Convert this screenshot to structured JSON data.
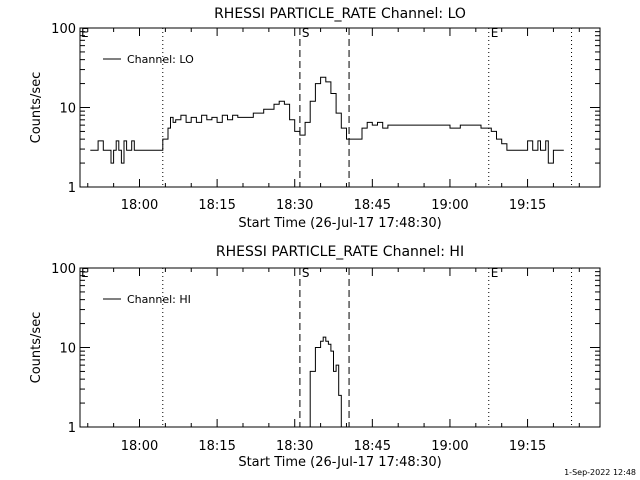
{
  "footer": {
    "timestamp": "1-Sep-2022 12:48"
  },
  "chart_data": [
    {
      "type": "line",
      "title": "RHESSI PARTICLE_RATE Channel: LO",
      "xlabel": "Start Time (26-Jul-17 17:48:30)",
      "ylabel": "Counts/sec",
      "y_scale": "log",
      "ylim": [
        1,
        100
      ],
      "y_ticks": [
        "1",
        "10",
        "100"
      ],
      "xlim": [
        "17:48:30",
        "19:29:00"
      ],
      "x_ticks": [
        "18:00",
        "18:15",
        "18:30",
        "18:45",
        "19:00",
        "19:15"
      ],
      "grid": false,
      "legend": {
        "position": "top-left",
        "entries": [
          "Channel: LO"
        ]
      },
      "markers": [
        {
          "time": "18:04:30",
          "style": "dotted",
          "label": ""
        },
        {
          "time": "18:31:00",
          "style": "dashed",
          "label": "S"
        },
        {
          "time": "18:40:30",
          "style": "dashed",
          "label": ""
        },
        {
          "time": "19:07:30",
          "style": "dotted",
          "label": "E"
        },
        {
          "time": "19:23:30",
          "style": "dotted",
          "label": ""
        }
      ],
      "corner_label": "E",
      "series": [
        {
          "name": "Channel: LO",
          "x": [
            "17:50:30",
            "17:51:30",
            "17:52:00",
            "17:53:00",
            "17:54:00",
            "17:54:30",
            "17:55:00",
            "17:55:30",
            "17:56:00",
            "17:56:30",
            "17:57:00",
            "17:57:30",
            "17:58:00",
            "17:58:30",
            "17:59:00",
            "18:00:00",
            "18:02:00",
            "18:04:00",
            "18:04:30",
            "18:05:30",
            "18:06:00",
            "18:06:30",
            "18:07:00",
            "18:08:00",
            "18:09:00",
            "18:10:00",
            "18:11:00",
            "18:12:00",
            "18:13:00",
            "18:14:00",
            "18:15:00",
            "18:16:00",
            "18:17:00",
            "18:18:00",
            "18:19:00",
            "18:20:00",
            "18:22:00",
            "18:24:00",
            "18:26:00",
            "18:27:00",
            "18:28:00",
            "18:29:00",
            "18:30:00",
            "18:31:00",
            "18:32:00",
            "18:33:00",
            "18:34:00",
            "18:35:00",
            "18:36:00",
            "18:37:00",
            "18:38:00",
            "18:39:00",
            "18:40:00",
            "18:41:00",
            "18:42:00",
            "18:43:00",
            "18:44:00",
            "18:45:00",
            "18:46:00",
            "18:47:00",
            "18:48:00",
            "18:50:00",
            "18:52:00",
            "18:54:00",
            "18:56:00",
            "18:58:00",
            "19:00:00",
            "19:02:00",
            "19:04:00",
            "19:06:00",
            "19:08:00",
            "19:09:00",
            "19:10:00",
            "19:11:00",
            "19:12:00",
            "19:13:00",
            "19:14:00",
            "19:15:00",
            "19:16:00",
            "19:17:00",
            "19:17:30",
            "19:18:00",
            "19:18:30",
            "19:19:00",
            "19:20:00",
            "19:22:00"
          ],
          "values": [
            2.9,
            2.9,
            3.8,
            2.9,
            2.9,
            2.0,
            2.9,
            3.8,
            2.9,
            2.0,
            3.8,
            2.9,
            2.9,
            3.8,
            2.9,
            2.9,
            2.9,
            2.9,
            4.0,
            5.5,
            7.5,
            6.5,
            7.0,
            8.0,
            6.5,
            7.5,
            6.5,
            8.0,
            7.0,
            7.5,
            6.5,
            8.0,
            7.0,
            8.0,
            7.5,
            7.5,
            8.5,
            9.5,
            11.0,
            12.0,
            11.0,
            7.0,
            5.0,
            4.5,
            6.5,
            12.0,
            20.0,
            24.0,
            21.0,
            15.0,
            8.5,
            5.5,
            4.0,
            4.0,
            4.0,
            5.5,
            6.5,
            6.0,
            6.5,
            5.5,
            6.0,
            6.0,
            6.0,
            6.0,
            6.0,
            6.0,
            5.5,
            6.0,
            6.0,
            5.5,
            5.0,
            4.0,
            3.5,
            2.9,
            2.9,
            2.9,
            2.9,
            3.8,
            2.9,
            3.8,
            2.9,
            2.9,
            3.8,
            2.0,
            2.9,
            2.9
          ]
        }
      ]
    },
    {
      "type": "line",
      "title": "RHESSI PARTICLE_RATE Channel: HI",
      "xlabel": "Start Time (26-Jul-17 17:48:30)",
      "ylabel": "Counts/sec",
      "y_scale": "log",
      "ylim": [
        1,
        100
      ],
      "y_ticks": [
        "1",
        "10",
        "100"
      ],
      "xlim": [
        "17:48:30",
        "19:29:00"
      ],
      "x_ticks": [
        "18:00",
        "18:15",
        "18:30",
        "18:45",
        "19:00",
        "19:15"
      ],
      "grid": false,
      "legend": {
        "position": "top-left",
        "entries": [
          "Channel: HI"
        ]
      },
      "markers": [
        {
          "time": "18:04:30",
          "style": "dotted",
          "label": ""
        },
        {
          "time": "18:31:00",
          "style": "dashed",
          "label": "S"
        },
        {
          "time": "18:40:30",
          "style": "dashed",
          "label": ""
        },
        {
          "time": "19:07:30",
          "style": "dotted",
          "label": "E"
        },
        {
          "time": "19:23:30",
          "style": "dotted",
          "label": ""
        }
      ],
      "corner_label": "E",
      "series": [
        {
          "name": "Channel: HI",
          "x": [
            "18:32:00",
            "18:33:00",
            "18:34:00",
            "18:35:00",
            "18:35:30",
            "18:36:00",
            "18:36:30",
            "18:37:00",
            "18:37:30",
            "18:38:00",
            "18:38:30",
            "18:39:00"
          ],
          "values": [
            1.0,
            5.0,
            10.0,
            12.0,
            13.5,
            12.0,
            11.0,
            9.0,
            5.0,
            6.0,
            2.5,
            1.0
          ]
        }
      ]
    }
  ]
}
